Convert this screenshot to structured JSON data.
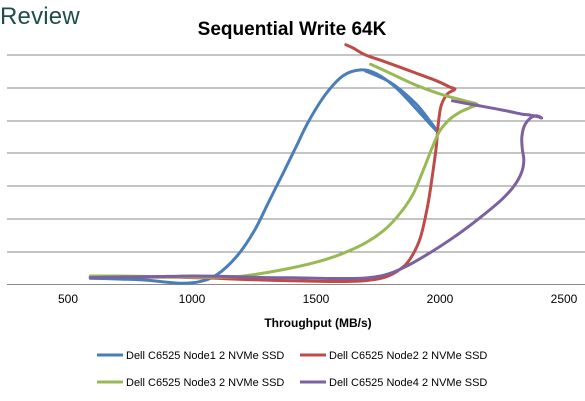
{
  "watermark": "Review",
  "chart_data": {
    "type": "line",
    "title": "Sequential Write 64K",
    "xlabel": "Throughput (MB/s)",
    "ylabel": "",
    "xlim": [
      500,
      2500
    ],
    "ylim": [
      0,
      100
    ],
    "x_ticks": [
      "500",
      "1000",
      "1500",
      "2000",
      "2500"
    ],
    "gridlines": "horizontal",
    "legend_position": "bottom",
    "series": [
      {
        "name": "Dell C6525 Node1 2 NVMe SSD",
        "color": "#4a7ebb",
        "points": [
          [
            590,
            2.5
          ],
          [
            700,
            2.2
          ],
          [
            800,
            1.8
          ],
          [
            900,
            0.8
          ],
          [
            960,
            0.3
          ],
          [
            1030,
            1
          ],
          [
            1100,
            4
          ],
          [
            1180,
            12
          ],
          [
            1250,
            23
          ],
          [
            1310,
            36
          ],
          [
            1370,
            49
          ],
          [
            1420,
            60
          ],
          [
            1470,
            71
          ],
          [
            1540,
            83
          ],
          [
            1610,
            91
          ],
          [
            1680,
            93.5
          ],
          [
            1740,
            92
          ],
          [
            1820,
            86
          ],
          [
            1900,
            77
          ],
          [
            1985,
            67
          ],
          [
            1960,
            71
          ],
          [
            1900,
            79
          ],
          [
            1800,
            88
          ],
          [
            1700,
            93
          ]
        ]
      },
      {
        "name": "Dell C6525 Node2 2 NVMe SSD",
        "color": "#be4b48",
        "points": [
          [
            590,
            3
          ],
          [
            700,
            3.2
          ],
          [
            800,
            3
          ],
          [
            900,
            3
          ],
          [
            1000,
            2.8
          ],
          [
            1100,
            2.5
          ],
          [
            1200,
            2
          ],
          [
            1300,
            1.7
          ],
          [
            1400,
            1.4
          ],
          [
            1500,
            1.2
          ],
          [
            1600,
            1.1
          ],
          [
            1700,
            1.5
          ],
          [
            1780,
            3
          ],
          [
            1840,
            6.5
          ],
          [
            1880,
            11
          ],
          [
            1920,
            20
          ],
          [
            1950,
            34
          ],
          [
            1970,
            48
          ],
          [
            1985,
            60
          ],
          [
            1993,
            70
          ],
          [
            2005,
            78
          ],
          [
            2030,
            83
          ],
          [
            2060,
            85
          ],
          [
            2040,
            86
          ],
          [
            1980,
            89
          ],
          [
            1880,
            93
          ],
          [
            1780,
            97
          ],
          [
            1700,
            100
          ],
          [
            1650,
            103
          ],
          [
            1620,
            104.5
          ]
        ]
      },
      {
        "name": "Dell C6525 Node3 2 NVMe SSD",
        "color": "#98b954",
        "points": [
          [
            590,
            3.5
          ],
          [
            700,
            3.5
          ],
          [
            800,
            3.3
          ],
          [
            900,
            3.1
          ],
          [
            1000,
            3
          ],
          [
            1100,
            3
          ],
          [
            1200,
            3.4
          ],
          [
            1300,
            5
          ],
          [
            1400,
            7
          ],
          [
            1500,
            9.5
          ],
          [
            1600,
            13
          ],
          [
            1700,
            18
          ],
          [
            1780,
            24
          ],
          [
            1840,
            31
          ],
          [
            1890,
            39
          ],
          [
            1930,
            49
          ],
          [
            1970,
            60
          ],
          [
            2000,
            67
          ],
          [
            2040,
            72
          ],
          [
            2080,
            75
          ],
          [
            2120,
            77
          ],
          [
            2150,
            78.5
          ],
          [
            2100,
            80
          ],
          [
            2000,
            83
          ],
          [
            1900,
            87
          ],
          [
            1800,
            92
          ],
          [
            1720,
            96
          ]
        ]
      },
      {
        "name": "Dell C6525 Node4 2 NVMe SSD",
        "color": "#7d60a0",
        "points": [
          [
            590,
            2.8
          ],
          [
            700,
            3
          ],
          [
            800,
            3.2
          ],
          [
            900,
            3.3
          ],
          [
            1000,
            3.5
          ],
          [
            1100,
            3.4
          ],
          [
            1200,
            3.1
          ],
          [
            1300,
            2.8
          ],
          [
            1400,
            2.7
          ],
          [
            1500,
            2.5
          ],
          [
            1600,
            2.4
          ],
          [
            1700,
            2.6
          ],
          [
            1780,
            4
          ],
          [
            1860,
            7.5
          ],
          [
            1950,
            13
          ],
          [
            2050,
            20
          ],
          [
            2150,
            28
          ],
          [
            2250,
            37
          ],
          [
            2300,
            43
          ],
          [
            2330,
            49
          ],
          [
            2338,
            54
          ],
          [
            2332,
            59
          ],
          [
            2330,
            64
          ],
          [
            2340,
            69
          ],
          [
            2365,
            72.5
          ],
          [
            2390,
            73.5
          ],
          [
            2410,
            72.5
          ],
          [
            2395,
            73
          ],
          [
            2360,
            73.8
          ],
          [
            2330,
            74.2
          ],
          [
            2250,
            76
          ],
          [
            2150,
            78
          ],
          [
            2050,
            80
          ]
        ]
      }
    ]
  }
}
